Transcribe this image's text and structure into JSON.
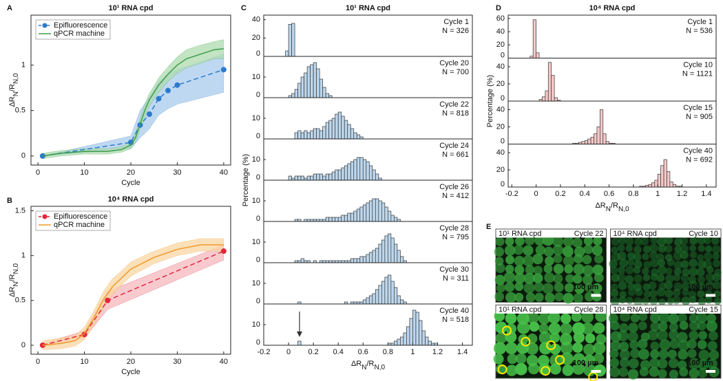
{
  "chart_data": [
    {
      "type": "line",
      "panel": "A",
      "title": "10¹ RNA cpd",
      "x_label": "Cycle",
      "y_label": [
        {
          "text": "ΔR"
        },
        {
          "text": "N",
          "sub": true
        },
        {
          "text": "/R"
        },
        {
          "text": "N,0",
          "sub": true
        }
      ],
      "xlim": [
        -1.5,
        41.5
      ],
      "ylim": [
        -0.1,
        1.55
      ],
      "xticks": [
        0,
        10,
        20,
        30,
        40
      ],
      "yticks": [
        0,
        0.5,
        1
      ],
      "legend": "upper left",
      "series": [
        {
          "name": "Epifluorescence",
          "color": "#2b7bcc",
          "band_color": "#a9cbee",
          "dashed": true,
          "markers": true,
          "x": [
            1,
            20,
            22,
            24,
            26,
            28,
            30,
            40
          ],
          "values": [
            0,
            0.15,
            0.34,
            0.46,
            0.63,
            0.72,
            0.78,
            0.95
          ],
          "lower": [
            0,
            0.08,
            0.2,
            0.3,
            0.45,
            0.52,
            0.57,
            0.7
          ],
          "upper": [
            0,
            0.22,
            0.5,
            0.65,
            0.82,
            0.9,
            0.95,
            1.12
          ]
        },
        {
          "name": "qPCR machine",
          "color": "#3b9b4b",
          "band_color": "#aedbad",
          "dashed": false,
          "markers": false,
          "x": [
            1,
            5,
            10,
            15,
            18,
            20,
            21,
            22,
            23,
            24,
            25,
            26,
            28,
            30,
            32,
            35,
            38,
            40
          ],
          "values": [
            0,
            0.03,
            0.05,
            0.05,
            0.07,
            0.12,
            0.2,
            0.35,
            0.5,
            0.62,
            0.7,
            0.78,
            0.9,
            1.0,
            1.07,
            1.12,
            1.17,
            1.18
          ],
          "lower": [
            -0.03,
            0,
            0.02,
            0.02,
            0.04,
            0.08,
            0.15,
            0.29,
            0.43,
            0.55,
            0.63,
            0.7,
            0.82,
            0.91,
            0.97,
            1.02,
            1.07,
            1.07
          ],
          "upper": [
            0.03,
            0.06,
            0.08,
            0.08,
            0.1,
            0.16,
            0.25,
            0.41,
            0.57,
            0.69,
            0.77,
            0.86,
            0.98,
            1.09,
            1.17,
            1.22,
            1.26,
            1.28
          ]
        }
      ]
    },
    {
      "type": "line",
      "panel": "B",
      "title": "10⁴ RNA cpd",
      "x_label": "Cycle",
      "y_label": [
        {
          "text": "ΔR"
        },
        {
          "text": "N",
          "sub": true
        },
        {
          "text": "/R"
        },
        {
          "text": "N,0",
          "sub": true
        }
      ],
      "xlim": [
        -1.5,
        41.5
      ],
      "ylim": [
        -0.1,
        1.55
      ],
      "xticks": [
        0,
        10,
        20,
        30,
        40
      ],
      "yticks": [
        0,
        0.5,
        1,
        1.5
      ],
      "legend": "upper left",
      "series": [
        {
          "name": "Epifluorescence",
          "color": "#e0283a",
          "band_color": "#f6b8bd",
          "dashed": true,
          "markers": true,
          "x": [
            1,
            10,
            15,
            40
          ],
          "values": [
            0,
            0.12,
            0.5,
            1.05
          ],
          "lower": [
            -0.02,
            0.08,
            0.4,
            0.95
          ],
          "upper": [
            0.02,
            0.16,
            0.6,
            1.12
          ]
        },
        {
          "name": "qPCR machine",
          "color": "#ef9a2a",
          "band_color": "#f9d6a2",
          "dashed": false,
          "markers": false,
          "x": [
            1,
            5,
            8,
            10,
            12,
            14,
            16,
            18,
            20,
            25,
            30,
            35,
            40
          ],
          "values": [
            0,
            0.02,
            0.05,
            0.13,
            0.3,
            0.5,
            0.65,
            0.75,
            0.85,
            0.98,
            1.07,
            1.12,
            1.12
          ],
          "lower": [
            -0.05,
            -0.04,
            -0.01,
            0.06,
            0.22,
            0.41,
            0.56,
            0.67,
            0.77,
            0.91,
            1.0,
            1.05,
            1.05
          ],
          "upper": [
            0.05,
            0.08,
            0.11,
            0.2,
            0.38,
            0.59,
            0.74,
            0.83,
            0.93,
            1.05,
            1.14,
            1.19,
            1.19
          ]
        }
      ]
    },
    {
      "type": "histogram",
      "panel": "C",
      "title": "10¹ RNA cpd",
      "y_label": "Percentage (%)",
      "x_label": [
        {
          "text": "ΔR"
        },
        {
          "text": "N",
          "sub": true
        },
        {
          "text": "/R"
        },
        {
          "text": "N,0",
          "sub": true
        }
      ],
      "xlim": [
        -0.2,
        1.48
      ],
      "xticks": [
        -0.2,
        0,
        0.2,
        0.4,
        0.6,
        0.8,
        1,
        1.2,
        1.4
      ],
      "color": "#bcd6ec",
      "panels": [
        {
          "label": "Cycle 1",
          "n_label": "N = 326",
          "ylim": [
            0,
            45
          ],
          "yticks": [
            0,
            20,
            40
          ],
          "bins": [
            -0.025,
            0,
            0.025,
            0.05
          ],
          "counts": [
            6,
            35,
            36
          ]
        },
        {
          "label": "Cycle 20",
          "n_label": "N = 700",
          "ylim": [
            0,
            20
          ],
          "yticks": [
            0,
            10
          ],
          "bins": [
            0,
            0.025,
            0.05,
            0.075,
            0.1,
            0.125,
            0.15,
            0.175,
            0.2,
            0.225,
            0.25,
            0.275,
            0.3,
            0.325,
            0.35
          ],
          "counts": [
            1,
            2,
            4,
            7,
            10,
            12,
            15,
            16,
            17,
            14,
            9,
            5,
            2,
            1
          ]
        },
        {
          "label": "Cycle 22",
          "n_label": "N = 818",
          "ylim": [
            0,
            20
          ],
          "yticks": [
            0,
            10
          ],
          "bins": [
            0.05,
            0.075,
            0.1,
            0.125,
            0.15,
            0.175,
            0.2,
            0.225,
            0.25,
            0.275,
            0.3,
            0.325,
            0.35,
            0.375,
            0.4,
            0.425,
            0.45,
            0.475,
            0.5,
            0.525,
            0.55,
            0.575,
            0.6
          ],
          "counts": [
            3,
            4,
            3,
            4,
            3,
            4,
            5,
            5,
            4,
            6,
            8,
            9,
            10,
            12,
            13,
            11,
            9,
            7,
            5,
            3,
            2,
            1
          ]
        },
        {
          "label": "Cycle 24",
          "n_label": "N = 661",
          "ylim": [
            0,
            20
          ],
          "yticks": [
            0,
            10
          ],
          "bins": [
            0,
            0.025,
            0.05,
            0.075,
            0.1,
            0.125,
            0.15,
            0.175,
            0.2,
            0.225,
            0.25,
            0.275,
            0.3,
            0.325,
            0.35,
            0.375,
            0.4,
            0.425,
            0.45,
            0.475,
            0.5,
            0.525,
            0.55,
            0.575,
            0.6,
            0.625,
            0.65,
            0.675,
            0.7,
            0.725,
            0.75
          ],
          "counts": [
            2,
            1,
            2,
            2,
            2,
            1,
            2,
            2,
            3,
            3,
            3,
            2,
            3,
            3,
            4,
            5,
            5,
            6,
            7,
            8,
            9,
            10,
            11,
            11,
            10,
            9,
            7,
            5,
            3,
            1
          ]
        },
        {
          "label": "Cycle 26",
          "n_label": "N = 412",
          "ylim": [
            0,
            20
          ],
          "yticks": [
            0,
            10
          ],
          "bins": [
            0.05,
            0.075,
            0.1,
            0.125,
            0.15,
            0.175,
            0.2,
            0.225,
            0.25,
            0.275,
            0.3,
            0.325,
            0.35,
            0.375,
            0.4,
            0.425,
            0.45,
            0.475,
            0.5,
            0.525,
            0.55,
            0.575,
            0.6,
            0.625,
            0.65,
            0.675,
            0.7,
            0.725,
            0.75,
            0.775,
            0.8,
            0.825,
            0.85,
            0.875,
            0.9
          ],
          "counts": [
            1,
            1,
            0,
            1,
            1,
            1,
            1,
            1,
            1,
            1,
            2,
            2,
            2,
            2,
            2,
            3,
            3,
            4,
            4,
            5,
            6,
            7,
            8,
            9,
            10,
            11,
            11,
            10,
            9,
            7,
            5,
            3,
            2,
            1
          ]
        },
        {
          "label": "Cycle 28",
          "n_label": "N = 795",
          "ylim": [
            0,
            20
          ],
          "yticks": [
            0,
            10
          ],
          "bins": [
            0.05,
            0.075,
            0.1,
            0.125,
            0.15,
            0.175,
            0.2,
            0.225,
            0.25,
            0.275,
            0.3,
            0.325,
            0.35,
            0.375,
            0.4,
            0.425,
            0.45,
            0.475,
            0.5,
            0.525,
            0.55,
            0.575,
            0.6,
            0.625,
            0.65,
            0.675,
            0.7,
            0.725,
            0.75,
            0.775,
            0.8,
            0.825,
            0.85,
            0.875,
            0.9,
            0.925,
            0.95
          ],
          "counts": [
            1,
            1,
            2,
            1,
            1,
            0,
            1,
            0,
            1,
            1,
            1,
            1,
            1,
            1,
            1,
            1,
            1,
            1,
            2,
            2,
            2,
            3,
            3,
            4,
            5,
            6,
            7,
            9,
            11,
            13,
            14,
            12,
            9,
            6,
            3,
            1
          ]
        },
        {
          "label": "Cycle 30",
          "n_label": "N = 311",
          "ylim": [
            0,
            20
          ],
          "yticks": [
            0,
            10
          ],
          "bins": [
            0.05,
            0.075,
            0.1,
            0.125,
            0.15,
            0.175,
            0.2,
            0.225,
            0.25,
            0.275,
            0.3,
            0.325,
            0.35,
            0.375,
            0.4,
            0.425,
            0.45,
            0.475,
            0.5,
            0.525,
            0.55,
            0.575,
            0.6,
            0.625,
            0.65,
            0.675,
            0.7,
            0.725,
            0.75,
            0.775,
            0.8,
            0.825,
            0.85,
            0.875,
            0.9,
            0.925,
            0.95
          ],
          "counts": [
            0,
            1,
            0,
            0,
            0,
            0,
            0,
            0,
            0,
            0,
            0,
            0,
            0,
            0,
            0,
            0,
            1,
            0,
            1,
            1,
            1,
            1,
            2,
            3,
            4,
            5,
            7,
            9,
            11,
            13,
            14,
            11,
            8,
            4,
            2,
            1
          ]
        },
        {
          "label": "Cycle 40",
          "n_label": "N = 518",
          "ylim": [
            0,
            20
          ],
          "yticks": [
            0,
            10
          ],
          "bins": [
            0.075,
            0.1,
            0.125,
            0.15,
            0.175,
            0.2,
            0.225,
            0.25,
            0.275,
            0.3,
            0.325,
            0.35,
            0.375,
            0.4,
            0.425,
            0.45,
            0.475,
            0.5,
            0.525,
            0.55,
            0.575,
            0.6,
            0.625,
            0.65,
            0.675,
            0.7,
            0.725,
            0.75,
            0.775,
            0.8,
            0.825,
            0.85,
            0.875,
            0.9,
            0.925,
            0.95,
            0.975,
            1,
            1.025,
            1.05,
            1.075,
            1.1,
            1.125,
            1.15,
            1.175,
            1.2
          ],
          "counts": [
            2,
            0,
            0,
            0,
            0,
            0,
            0,
            0,
            0,
            0,
            0,
            0,
            0,
            0,
            0,
            0,
            0,
            0,
            0,
            0,
            0,
            0,
            0,
            0,
            0,
            0,
            0,
            0,
            0,
            1,
            1,
            2,
            3,
            4,
            6,
            9,
            13,
            17,
            16,
            12,
            7,
            4,
            2,
            1,
            1
          ]
        }
      ]
    },
    {
      "type": "histogram",
      "panel": "D",
      "title": "10⁴ RNA cpd",
      "y_label": "Percentage (%)",
      "x_label": [
        {
          "text": "ΔR"
        },
        {
          "text": "N",
          "sub": true
        },
        {
          "text": "/R"
        },
        {
          "text": "N,0",
          "sub": true
        }
      ],
      "xlim": [
        -0.23,
        1.48
      ],
      "xticks": [
        -0.2,
        0,
        0.2,
        0.4,
        0.6,
        0.8,
        1,
        1.2,
        1.4
      ],
      "color": "#f4c9c9",
      "panels": [
        {
          "label": "Cycle 1",
          "n_label": "N = 536",
          "ylim": [
            0,
            65
          ],
          "yticks": [
            0,
            20,
            40,
            60
          ],
          "bins": [
            -0.05,
            -0.025,
            0,
            0.025
          ],
          "counts": [
            3,
            58,
            8
          ]
        },
        {
          "label": "Cycle 10",
          "n_label": "N = 1121",
          "ylim": [
            0,
            50
          ],
          "yticks": [
            0,
            20,
            40
          ],
          "bins": [
            0.025,
            0.05,
            0.075,
            0.1,
            0.125,
            0.15,
            0.175,
            0.2
          ],
          "counts": [
            2,
            5,
            12,
            45,
            30,
            4,
            1
          ]
        },
        {
          "label": "Cycle 15",
          "n_label": "N = 905",
          "ylim": [
            0,
            50
          ],
          "yticks": [
            0,
            20,
            40
          ],
          "bins": [
            0.3,
            0.325,
            0.35,
            0.375,
            0.4,
            0.425,
            0.45,
            0.475,
            0.5,
            0.525,
            0.55,
            0.575,
            0.6,
            0.625,
            0.65
          ],
          "counts": [
            1,
            1,
            2,
            3,
            4,
            6,
            8,
            12,
            20,
            40,
            12,
            3,
            1,
            1
          ]
        },
        {
          "label": "Cycle 40",
          "n_label": "N = 692",
          "ylim": [
            0,
            50
          ],
          "yticks": [
            0,
            20,
            40
          ],
          "bins": [
            0.85,
            0.875,
            0.9,
            0.925,
            0.95,
            0.975,
            1,
            1.025,
            1.05,
            1.075,
            1.1,
            1.125,
            1.15,
            1.175,
            1.2
          ],
          "counts": [
            1,
            1,
            2,
            3,
            5,
            8,
            15,
            25,
            32,
            18,
            6,
            3,
            1,
            1
          ]
        }
      ]
    },
    {
      "type": "micrographs",
      "panel": "E",
      "tiles": [
        {
          "title": "10¹ RNA cpd",
          "cycle": "Cycle 22",
          "scale": "100 µm"
        },
        {
          "title": "10⁴ RNA cpd",
          "cycle": "Cycle 10",
          "scale": "100 µm"
        },
        {
          "title": "10¹ RNA cpd",
          "cycle": "Cycle 28",
          "scale": "100 µm"
        },
        {
          "title": "10⁴ RNA cpd",
          "cycle": "Cycle 15",
          "scale": "100 µm"
        }
      ]
    }
  ]
}
